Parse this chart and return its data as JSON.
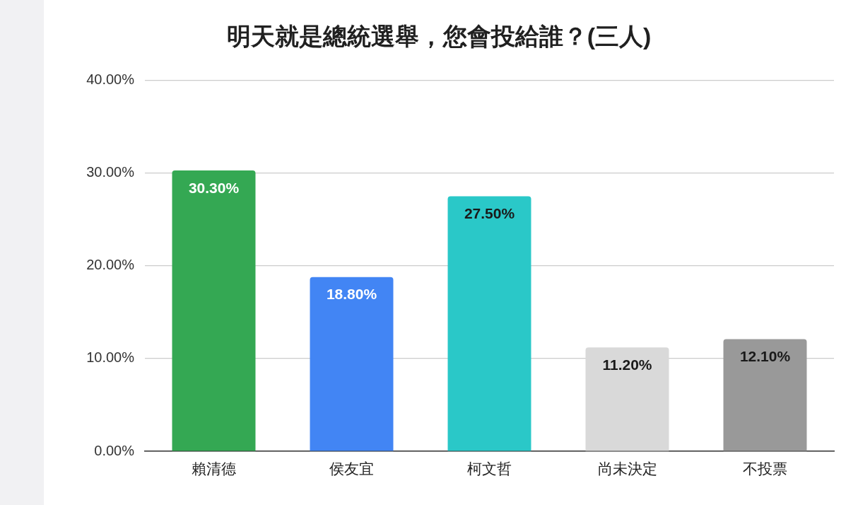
{
  "chart_data": {
    "type": "bar",
    "title": "明天就是總統選舉，您會投給誰？(三人)",
    "categories": [
      "賴清德",
      "侯友宜",
      "柯文哲",
      "尚未決定",
      "不投票"
    ],
    "values": [
      30.3,
      18.8,
      27.5,
      11.2,
      12.1
    ],
    "value_labels": [
      "30.30%",
      "18.80%",
      "27.50%",
      "11.20%",
      "12.10%"
    ],
    "colors": [
      "#34a853",
      "#4285f4",
      "#2ac8c8",
      "#d9d9d9",
      "#999999"
    ],
    "ylim": [
      0,
      40
    ],
    "yticks": [
      {
        "value": 0,
        "label": "0.00%"
      },
      {
        "value": 10,
        "label": "10.00%"
      },
      {
        "value": 20,
        "label": "20.00%"
      },
      {
        "value": 30,
        "label": "30.00%"
      },
      {
        "value": 40,
        "label": "40.00%"
      }
    ],
    "grid": "y"
  }
}
